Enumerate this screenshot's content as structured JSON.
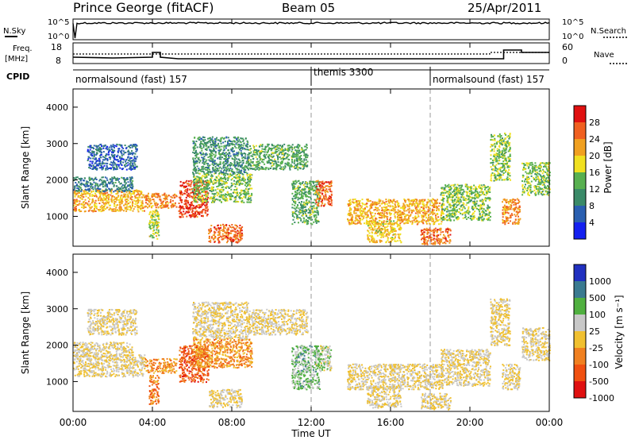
{
  "header": {
    "station": "Prince George (fitACF)",
    "beam": "Beam 05",
    "date": "25/Apr/2011"
  },
  "noise_panel": {
    "left_label": "N.Sky",
    "right_label": "N.Search",
    "left_ticks": [
      "10^5",
      "10^0"
    ],
    "right_ticks": [
      "10^5",
      "10^0"
    ]
  },
  "freq_panel": {
    "left_label_1": "Freq.",
    "left_label_2": "[MHz]",
    "right_label": "Nave",
    "left_ticks": [
      "18",
      "8"
    ],
    "right_ticks": [
      "60",
      "0"
    ]
  },
  "cpid_panel": {
    "label": "CPID",
    "segments": [
      {
        "name": "normalsound (fast)",
        "id": "157",
        "start_hour": 0
      },
      {
        "name": "themis",
        "id": "3300",
        "start_hour": 12
      },
      {
        "name": "normalsound (fast)",
        "id": "157",
        "start_hour": 18
      }
    ]
  },
  "axes": {
    "y_label": "Slant Range [km]",
    "y_ticks": [
      "1000",
      "2000",
      "3000",
      "4000"
    ],
    "x_label": "Time UT",
    "x_ticks": [
      "00:00",
      "04:00",
      "08:00",
      "12:00",
      "16:00",
      "20:00",
      "00:00"
    ]
  },
  "power_scale": {
    "label": "Power [dB]",
    "ticks": [
      "4",
      "8",
      "12",
      "16",
      "20",
      "24",
      "28"
    ],
    "colors": [
      "#1420f0",
      "#2a5fb0",
      "#3a8a68",
      "#58b050",
      "#f0e020",
      "#f0a020",
      "#f06020",
      "#e01010"
    ]
  },
  "velocity_scale": {
    "label": "Velocity [m s⁻¹]",
    "ticks": [
      "1000",
      "500",
      "100",
      "25",
      "-25",
      "-100",
      "-500",
      "-1000"
    ],
    "colors": [
      "#2030c0",
      "#3a7a90",
      "#50b040",
      "#c8c8c8",
      "#f0c030",
      "#f08020",
      "#f05010",
      "#e01010"
    ]
  },
  "chart_data": {
    "type": "heatmap",
    "title": "Prince George (fitACF)",
    "x_range_hours": [
      0,
      24
    ],
    "y_range_km": [
      180,
      4500
    ],
    "xlabel": "Time UT",
    "ylabel": "Slant Range [km]",
    "power_range_db": [
      0,
      30
    ],
    "velocity_range_ms": [
      -1000,
      1000
    ],
    "cpid_switch_hours": [
      12,
      18
    ],
    "echo_regions": [
      {
        "t0": 0.0,
        "t1": 3.6,
        "r0": 1150,
        "r1": 1750,
        "power": 20,
        "velocity": 0
      },
      {
        "t0": 0.0,
        "t1": 3.0,
        "r0": 1700,
        "r1": 2100,
        "power": 8,
        "velocity": 0
      },
      {
        "t0": 0.7,
        "t1": 3.2,
        "r0": 2300,
        "r1": 3000,
        "power": 6,
        "velocity": 0
      },
      {
        "t0": 3.6,
        "t1": 5.2,
        "r0": 1250,
        "r1": 1650,
        "power": 22,
        "velocity": -300
      },
      {
        "t0": 3.8,
        "t1": 4.3,
        "r0": 400,
        "r1": 1200,
        "power": 16,
        "velocity": -400
      },
      {
        "t0": 5.3,
        "t1": 6.8,
        "r0": 1000,
        "r1": 2000,
        "power": 26,
        "velocity": -600
      },
      {
        "t0": 6.0,
        "t1": 9.0,
        "r0": 1400,
        "r1": 2200,
        "power": 14,
        "velocity": -300
      },
      {
        "t0": 6.8,
        "t1": 8.5,
        "r0": 300,
        "r1": 800,
        "power": 24,
        "velocity": 0
      },
      {
        "t0": 6.0,
        "t1": 8.8,
        "r0": 2200,
        "r1": 3200,
        "power": 10,
        "velocity": 0
      },
      {
        "t0": 8.8,
        "t1": 11.8,
        "r0": 2300,
        "r1": 3000,
        "power": 12,
        "velocity": 0
      },
      {
        "t0": 11.0,
        "t1": 12.4,
        "r0": 800,
        "r1": 2000,
        "power": 12,
        "velocity": 300
      },
      {
        "t0": 12.2,
        "t1": 13.0,
        "r0": 1300,
        "r1": 2000,
        "power": 24,
        "velocity": 200
      },
      {
        "t0": 13.8,
        "t1": 18.6,
        "r0": 800,
        "r1": 1500,
        "power": 20,
        "velocity": 0
      },
      {
        "t0": 14.8,
        "t1": 16.5,
        "r0": 300,
        "r1": 900,
        "power": 18,
        "velocity": 0
      },
      {
        "t0": 17.5,
        "t1": 19.0,
        "r0": 250,
        "r1": 700,
        "power": 24,
        "velocity": 0
      },
      {
        "t0": 18.5,
        "t1": 21.0,
        "r0": 900,
        "r1": 1900,
        "power": 14,
        "velocity": 0
      },
      {
        "t0": 21.0,
        "t1": 22.0,
        "r0": 2000,
        "r1": 3300,
        "power": 14,
        "velocity": 0
      },
      {
        "t0": 21.6,
        "t1": 22.5,
        "r0": 800,
        "r1": 1500,
        "power": 22,
        "velocity": 0
      },
      {
        "t0": 22.6,
        "t1": 24.0,
        "r0": 1600,
        "r1": 2500,
        "power": 14,
        "velocity": 0
      }
    ]
  }
}
